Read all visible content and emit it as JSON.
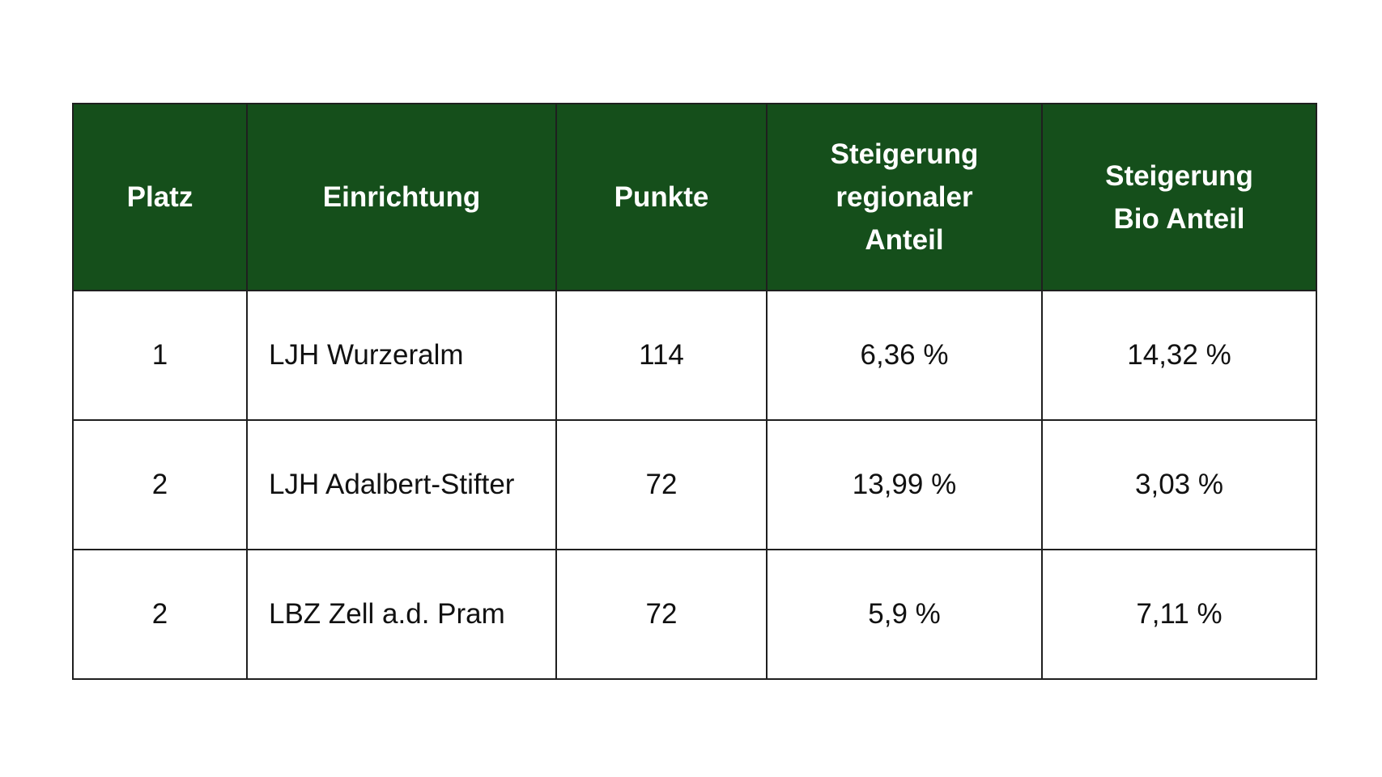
{
  "table": {
    "headers": [
      [
        "Platz"
      ],
      [
        "Einrichtung"
      ],
      [
        "Punkte"
      ],
      [
        "Steigerung",
        "regionaler",
        "Anteil"
      ],
      [
        "Steigerung",
        "Bio Anteil"
      ]
    ],
    "rows": [
      [
        "1",
        "LJH Wurzeralm",
        "114",
        "6,36 %",
        "14,32 %"
      ],
      [
        "2",
        "LJH Adalbert-Stifter",
        "72",
        "13,99 %",
        "3,03 %"
      ],
      [
        "2",
        "LBZ Zell a.d. Pram",
        "72",
        "5,9 %",
        "7,11 %"
      ]
    ],
    "colors": {
      "header_background": "#154f1b",
      "header_text": "#ffffff",
      "border": "#1f1f1f"
    }
  }
}
